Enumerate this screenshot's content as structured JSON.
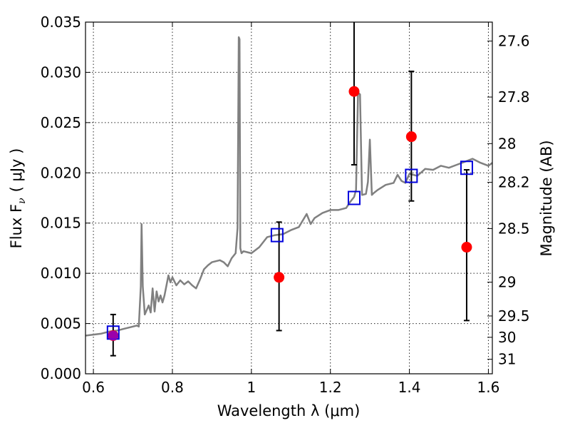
{
  "chart_data": {
    "type": "scatter",
    "xlabel": "Wavelength  λ (μm)",
    "ylabel": "Flux  F",
    "ylabel_sub": "ν",
    "ylabel_unit": "( μJy )",
    "ylabel_right": "Magnitude (AB)",
    "xlim": [
      0.58,
      1.61
    ],
    "ylim": [
      0.0,
      0.035
    ],
    "grid": true,
    "x_ticks": [
      {
        "value": 0.6,
        "label": "0.6"
      },
      {
        "value": 0.8,
        "label": "0.8"
      },
      {
        "value": 1.0,
        "label": "1"
      },
      {
        "value": 1.2,
        "label": "1.2"
      },
      {
        "value": 1.4,
        "label": "1.4"
      },
      {
        "value": 1.6,
        "label": "1.6"
      }
    ],
    "y_ticks": [
      {
        "value": 0.0,
        "label": "0.000"
      },
      {
        "value": 0.005,
        "label": "0.005"
      },
      {
        "value": 0.01,
        "label": "0.010"
      },
      {
        "value": 0.015,
        "label": "0.015"
      },
      {
        "value": 0.02,
        "label": "0.020"
      },
      {
        "value": 0.025,
        "label": "0.025"
      },
      {
        "value": 0.03,
        "label": "0.030"
      },
      {
        "value": 0.035,
        "label": "0.035"
      }
    ],
    "right_ticks": [
      {
        "value": 27.6,
        "label": "27.6"
      },
      {
        "value": 27.8,
        "label": "27.8"
      },
      {
        "value": 28.0,
        "label": "28"
      },
      {
        "value": 28.2,
        "label": "28.2"
      },
      {
        "value": 28.5,
        "label": "28.5"
      },
      {
        "value": 29.0,
        "label": "29"
      },
      {
        "value": 29.5,
        "label": "29.5"
      },
      {
        "value": 30.0,
        "label": "30"
      },
      {
        "value": 31.0,
        "label": "31"
      }
    ],
    "series": [
      {
        "kind": "line",
        "color": "#808080",
        "x": [
          0.58,
          0.6,
          0.62,
          0.64,
          0.66,
          0.68,
          0.69,
          0.7,
          0.71,
          0.715,
          0.72,
          0.722,
          0.725,
          0.73,
          0.74,
          0.745,
          0.75,
          0.755,
          0.76,
          0.765,
          0.77,
          0.775,
          0.78,
          0.79,
          0.795,
          0.8,
          0.81,
          0.82,
          0.83,
          0.84,
          0.85,
          0.86,
          0.87,
          0.88,
          0.89,
          0.9,
          0.91,
          0.92,
          0.93,
          0.94,
          0.95,
          0.96,
          0.965,
          0.968,
          0.97,
          0.972,
          0.975,
          0.98,
          0.99,
          1.0,
          1.02,
          1.04,
          1.06,
          1.08,
          1.1,
          1.12,
          1.14,
          1.15,
          1.16,
          1.18,
          1.2,
          1.22,
          1.24,
          1.25,
          1.26,
          1.265,
          1.27,
          1.275,
          1.28,
          1.29,
          1.295,
          1.3,
          1.305,
          1.31,
          1.32,
          1.34,
          1.36,
          1.37,
          1.38,
          1.39,
          1.4,
          1.42,
          1.44,
          1.46,
          1.48,
          1.5,
          1.52,
          1.54,
          1.56,
          1.58,
          1.6,
          1.61
        ],
        "y": [
          0.0038,
          0.0039,
          0.004,
          0.0042,
          0.0043,
          0.0045,
          0.0046,
          0.0047,
          0.0048,
          0.0047,
          0.0087,
          0.0149,
          0.0087,
          0.0059,
          0.0068,
          0.0061,
          0.0085,
          0.0062,
          0.0082,
          0.0072,
          0.0078,
          0.0071,
          0.0078,
          0.0098,
          0.0091,
          0.0096,
          0.0088,
          0.0093,
          0.0089,
          0.0092,
          0.0088,
          0.0085,
          0.0094,
          0.0104,
          0.0108,
          0.0111,
          0.0112,
          0.0113,
          0.0111,
          0.0107,
          0.0115,
          0.012,
          0.0145,
          0.0335,
          0.0333,
          0.0125,
          0.012,
          0.0122,
          0.0121,
          0.012,
          0.0126,
          0.0136,
          0.0138,
          0.0139,
          0.0143,
          0.0146,
          0.0159,
          0.0149,
          0.0155,
          0.016,
          0.0163,
          0.0163,
          0.0165,
          0.0171,
          0.0176,
          0.0183,
          0.028,
          0.0278,
          0.0178,
          0.0179,
          0.0191,
          0.0233,
          0.0178,
          0.018,
          0.0183,
          0.0188,
          0.019,
          0.0198,
          0.0192,
          0.019,
          0.0199,
          0.0197,
          0.0204,
          0.0203,
          0.0207,
          0.0205,
          0.0208,
          0.0211,
          0.0214,
          0.021,
          0.0207,
          0.021
        ]
      },
      {
        "kind": "model-boxes",
        "color": "#0000dd",
        "x": [
          0.65,
          1.065,
          1.26,
          1.405,
          1.545
        ],
        "y": [
          0.0041,
          0.0138,
          0.0175,
          0.0197,
          0.0205
        ]
      },
      {
        "kind": "observed-points",
        "color": "#ff0000",
        "x": [
          0.65,
          1.07,
          1.26,
          1.405,
          1.545
        ],
        "y": [
          0.0038,
          0.0096,
          0.0281,
          0.0236,
          0.0126
        ],
        "err_low": [
          0.0018,
          0.0043,
          0.0208,
          0.0172,
          0.0053
        ],
        "err_high": [
          0.0059,
          0.0151,
          0.035,
          0.0301,
          0.0203
        ]
      }
    ]
  }
}
